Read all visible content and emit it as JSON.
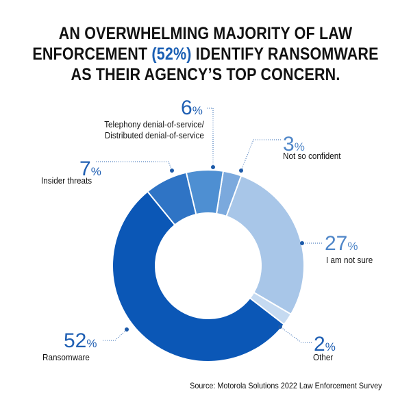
{
  "title": {
    "line1": "AN OVERWHELMING MAJORITY OF LAW",
    "line2_before": "ENFORCEMENT ",
    "line2_highlight": "(52%)",
    "line2_after": " IDENTIFY RANSOMWARE",
    "line3": "AS THEIR AGENCY’S TOP CONCERN."
  },
  "source": "Source: Motorola Solutions 2022 Law Enforcement Survey",
  "chart_data": {
    "type": "pie",
    "donut": true,
    "slices": [
      {
        "label": "Not so confident",
        "value": 3,
        "value_text": "3",
        "color": "#7ba9dd",
        "label_color": "#4f86c8"
      },
      {
        "label": "I am not sure",
        "value": 27,
        "value_text": "27",
        "color": "#a8c6e8",
        "label_color": "#4f86c8"
      },
      {
        "label": "Other",
        "value": 2,
        "value_text": "2",
        "color": "#c5daf1",
        "label_color": "#1f5fb3"
      },
      {
        "label": "Ransomware",
        "value": 52,
        "value_text": "52",
        "color": "#0b57b6",
        "label_color": "#1f5fb3"
      },
      {
        "label": "Insider threats",
        "value": 7,
        "value_text": "7",
        "color": "#2f74c5",
        "label_color": "#1f5fb3"
      },
      {
        "label_line1": "Telephony denial-of-service/",
        "label_line2": "Distributed denial-of-service",
        "value": 6,
        "value_text": "6",
        "color": "#4e8fd2",
        "label_color": "#1f5fb3"
      }
    ],
    "percent_sign": "%"
  }
}
